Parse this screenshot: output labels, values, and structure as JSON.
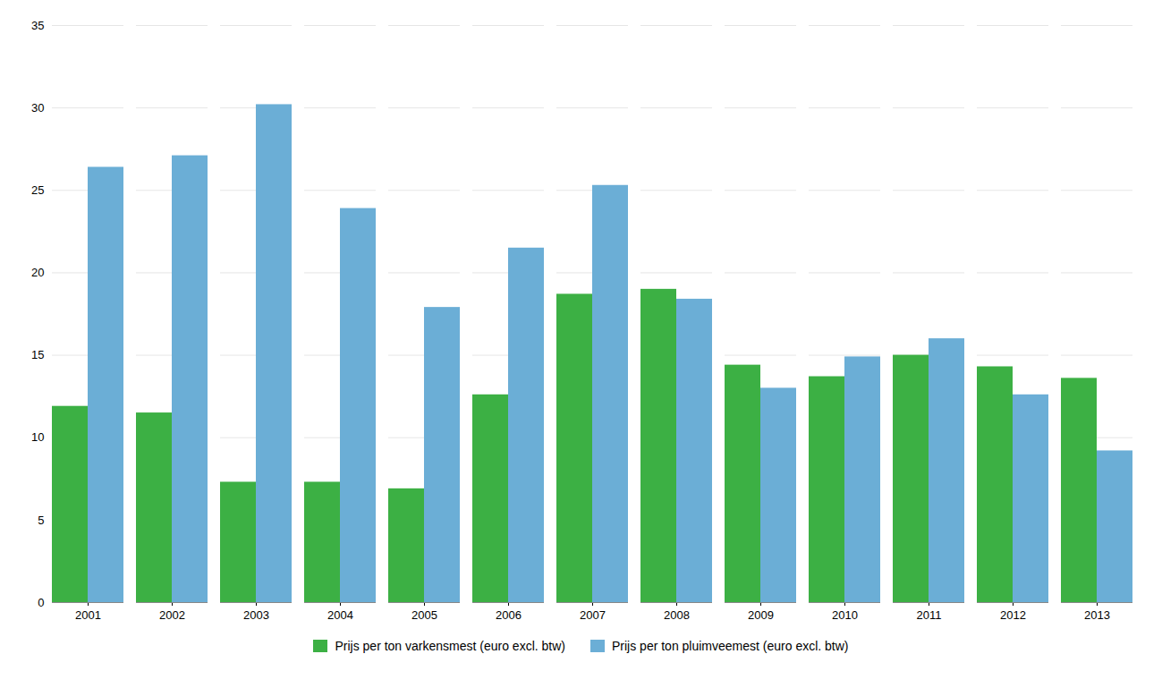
{
  "chart_data": {
    "type": "bar",
    "categories": [
      "2001",
      "2002",
      "2003",
      "2004",
      "2005",
      "2006",
      "2007",
      "2008",
      "2009",
      "2010",
      "2011",
      "2012",
      "2013"
    ],
    "series": [
      {
        "name": "Prijs per ton varkensmest (euro excl. btw)",
        "color": "#3cb044",
        "values": [
          11.9,
          11.5,
          7.3,
          7.3,
          6.9,
          12.6,
          18.7,
          19.0,
          14.4,
          13.7,
          15.0,
          14.3,
          13.6
        ]
      },
      {
        "name": "Prijs per ton pluimveemest (euro excl. btw)",
        "color": "#6baed6",
        "values": [
          26.4,
          27.1,
          30.2,
          23.9,
          17.9,
          21.5,
          25.3,
          18.4,
          13.0,
          14.9,
          16.0,
          12.6,
          9.2
        ]
      }
    ],
    "ylim": [
      0,
      35
    ],
    "yticks": [
      0,
      5,
      10,
      15,
      20,
      25,
      30,
      35
    ],
    "grid": true,
    "legend": "bottom"
  }
}
